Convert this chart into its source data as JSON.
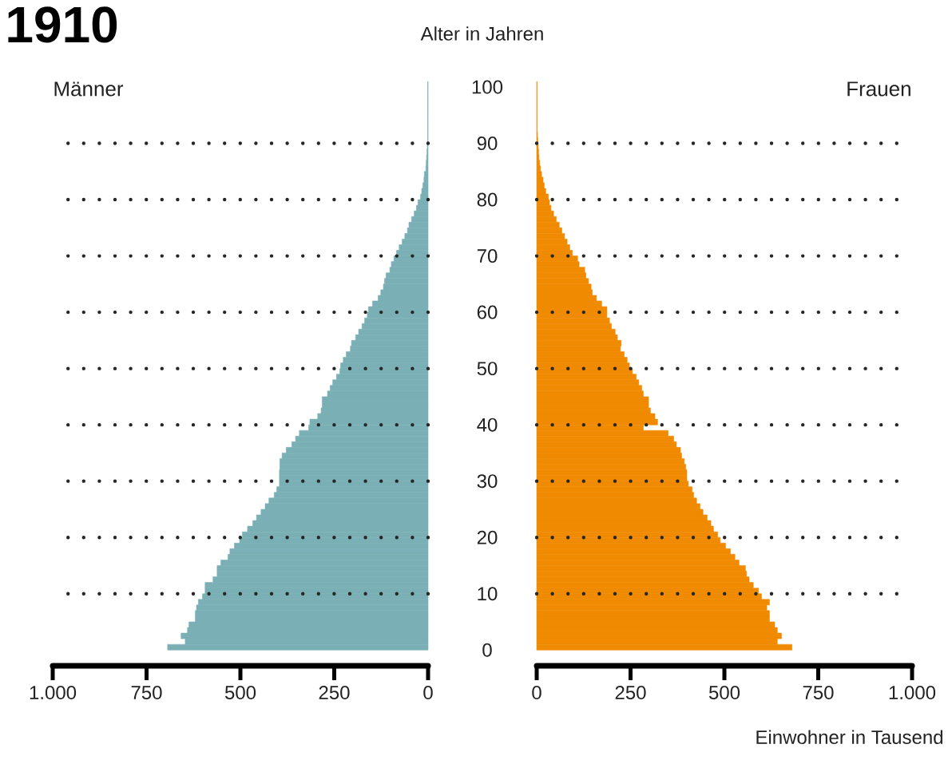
{
  "chart_data": [
    {
      "type": "bar",
      "orientation": "horizontal",
      "title": "1910",
      "subtitle": "Männer",
      "ylabel": "Alter in Jahren",
      "color": "#7ab0b5",
      "grid": "y",
      "categories": [
        "100",
        null,
        null,
        null,
        null,
        null,
        null,
        null,
        null,
        null,
        "90",
        null,
        null,
        null,
        null,
        null,
        null,
        null,
        null,
        null,
        "80",
        null,
        null,
        null,
        null,
        null,
        null,
        null,
        null,
        null,
        "70",
        null,
        null,
        null,
        null,
        null,
        null,
        null,
        null,
        null,
        "60",
        null,
        null,
        null,
        null,
        null,
        null,
        null,
        null,
        null,
        "50",
        null,
        null,
        null,
        null,
        null,
        null,
        null,
        null,
        null,
        "40",
        null,
        null,
        null,
        null,
        null,
        null,
        null,
        null,
        null,
        "30",
        null,
        null,
        null,
        null,
        null,
        null,
        null,
        null,
        null,
        "20",
        null,
        null,
        null,
        null,
        null,
        null,
        null,
        null,
        null,
        "10",
        null,
        null,
        null,
        null,
        null,
        null,
        null,
        null,
        null,
        "0"
      ],
      "values": [
        1,
        1,
        1,
        1,
        1,
        1,
        1,
        1,
        1,
        1,
        1,
        2,
        3,
        4,
        5,
        6,
        10,
        11,
        14,
        17,
        20,
        27,
        31,
        37,
        44,
        51,
        55,
        62,
        69,
        77,
        84,
        91,
        98,
        102,
        112,
        116,
        119,
        126,
        133,
        148,
        159,
        162,
        169,
        176,
        185,
        193,
        204,
        207,
        218,
        226,
        233,
        235,
        244,
        254,
        261,
        268,
        282,
        282,
        285,
        294,
        315,
        318,
        343,
        353,
        363,
        378,
        389,
        395,
        395,
        396,
        396,
        396,
        403,
        410,
        424,
        434,
        445,
        457,
        467,
        481,
        495,
        502,
        516,
        528,
        533,
        552,
        562,
        562,
        573,
        594,
        594,
        601,
        612,
        617,
        620,
        620,
        637,
        641,
        658,
        647,
        694
      ],
      "xlim": [
        1000,
        0
      ],
      "xticks": [
        {
          "value": 1000,
          "label": "1.000"
        },
        750,
        500,
        250,
        0
      ]
    },
    {
      "type": "bar",
      "orientation": "horizontal",
      "subtitle": "Frauen",
      "xlabel": "Einwohner in Tausend",
      "color": "#f08a00",
      "grid": "y",
      "tick_labels": "x",
      "categories": [
        "100",
        null,
        null,
        null,
        null,
        null,
        null,
        null,
        null,
        null,
        "90",
        null,
        null,
        null,
        null,
        null,
        null,
        null,
        null,
        null,
        "80",
        null,
        null,
        null,
        null,
        null,
        null,
        null,
        null,
        null,
        "70",
        null,
        null,
        null,
        null,
        null,
        null,
        null,
        null,
        null,
        "60",
        null,
        null,
        null,
        null,
        null,
        null,
        null,
        null,
        null,
        "50",
        null,
        null,
        null,
        null,
        null,
        null,
        null,
        null,
        null,
        "40",
        null,
        null,
        null,
        null,
        null,
        null,
        null,
        null,
        null,
        "30",
        null,
        null,
        null,
        null,
        null,
        null,
        null,
        null,
        null,
        "20",
        null,
        null,
        null,
        null,
        null,
        null,
        null,
        null,
        null,
        "10",
        null,
        null,
        null,
        null,
        null,
        null,
        null,
        null,
        null,
        "0"
      ],
      "values": [
        1,
        1,
        1,
        1,
        1,
        1,
        1,
        1,
        1,
        2,
        3,
        4,
        5,
        6,
        8,
        10,
        13,
        17,
        20,
        24,
        31,
        34,
        38,
        45,
        52,
        60,
        67,
        74,
        81,
        88,
        95,
        109,
        113,
        128,
        131,
        138,
        145,
        148,
        159,
        173,
        187,
        187,
        194,
        199,
        209,
        215,
        225,
        223,
        233,
        241,
        247,
        255,
        265,
        272,
        280,
        284,
        298,
        298,
        303,
        315,
        322,
        284,
        350,
        365,
        372,
        383,
        386,
        393,
        397,
        400,
        400,
        404,
        414,
        418,
        426,
        435,
        443,
        454,
        464,
        471,
        482,
        489,
        503,
        516,
        528,
        539,
        556,
        559,
        566,
        577,
        591,
        599,
        620,
        613,
        620,
        620,
        634,
        641,
        652,
        641,
        680
      ],
      "xlim": [
        0,
        1000
      ],
      "xticks": [
        0,
        250,
        500,
        750,
        {
          "value": 1000,
          "label": "1.000"
        }
      ]
    }
  ]
}
